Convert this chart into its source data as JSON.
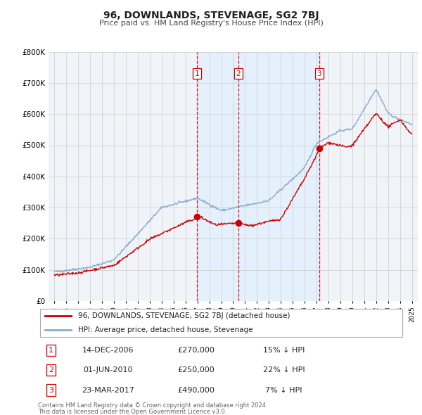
{
  "title": "96, DOWNLANDS, STEVENAGE, SG2 7BJ",
  "subtitle": "Price paid vs. HM Land Registry's House Price Index (HPI)",
  "legend_label_red": "96, DOWNLANDS, STEVENAGE, SG2 7BJ (detached house)",
  "legend_label_blue": "HPI: Average price, detached house, Stevenage",
  "transactions": [
    {
      "num": 1,
      "date": "14-DEC-2006",
      "price": 270000,
      "pct": "15%",
      "dir": "↓",
      "year": 2006.95
    },
    {
      "num": 2,
      "date": "01-JUN-2010",
      "price": 250000,
      "pct": "22%",
      "dir": "↓",
      "year": 2010.42
    },
    {
      "num": 3,
      "date": "23-MAR-2017",
      "price": 490000,
      "pct": "7%",
      "dir": "↓",
      "year": 2017.22
    }
  ],
  "footnote1": "Contains HM Land Registry data © Crown copyright and database right 2024.",
  "footnote2": "This data is licensed under the Open Government Licence v3.0.",
  "ylim": [
    0,
    800000
  ],
  "yticks": [
    0,
    100000,
    200000,
    300000,
    400000,
    500000,
    600000,
    700000,
    800000
  ],
  "ytick_labels": [
    "£0",
    "£100K",
    "£200K",
    "£300K",
    "£400K",
    "£500K",
    "£600K",
    "£700K",
    "£800K"
  ],
  "xlim_left": 1994.5,
  "xlim_right": 2025.5,
  "red_color": "#cc0000",
  "blue_color": "#88aacc",
  "shade_color": "#ddeeff",
  "grid_color": "#cccccc",
  "chart_bg": "#f0f4f8",
  "fig_bg": "#ffffff"
}
